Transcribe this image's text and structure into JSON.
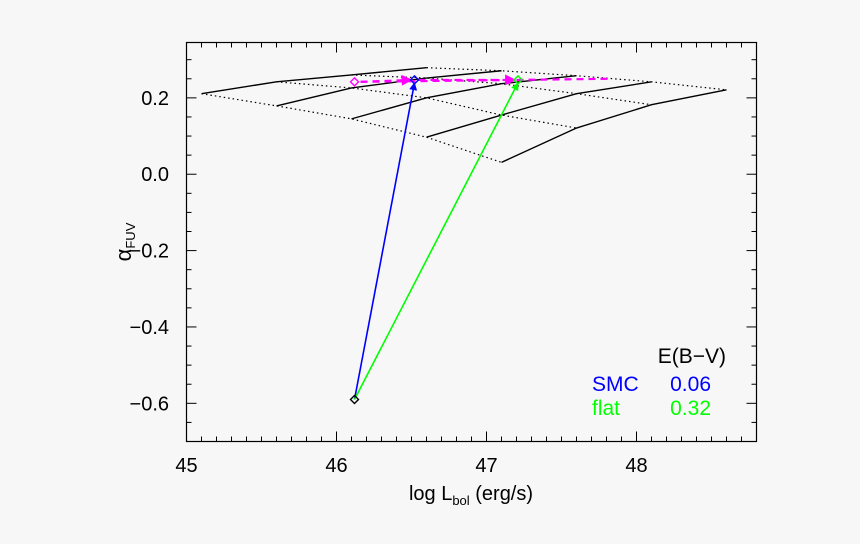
{
  "chart_data": {
    "type": "line",
    "xlabel": "log L",
    "xlabel_sub": "bol",
    "xlabel_unit": " (erg/s)",
    "ylabel": "α",
    "ylabel_sub": "FUV",
    "xlim": [
      45.0,
      48.8
    ],
    "ylim": [
      -0.7,
      0.345
    ],
    "xticks": [
      45,
      46,
      47,
      48
    ],
    "xtick_labels": [
      "45",
      "46",
      "47",
      "48"
    ],
    "yticks": [
      -0.6,
      -0.4,
      -0.2,
      0.0,
      0.2
    ],
    "ytick_labels": [
      "−0.6",
      "−0.4",
      "−0.2",
      "0.0",
      "0.2"
    ],
    "x_minor_step": 0.1,
    "y_minor_step": 0.05,
    "grid": false,
    "model_grid": {
      "x": [
        [
          45.1,
          45.6,
          46.1,
          46.6
        ],
        [
          45.6,
          46.1,
          46.6,
          47.1
        ],
        [
          46.1,
          46.6,
          47.1,
          47.6
        ],
        [
          46.6,
          47.1,
          47.6,
          48.1
        ],
        [
          47.1,
          47.6,
          48.1,
          48.6
        ]
      ],
      "y": [
        [
          0.211,
          0.242,
          0.26,
          0.279
        ],
        [
          0.179,
          0.226,
          0.252,
          0.271
        ],
        [
          0.145,
          0.2,
          0.237,
          0.258
        ],
        [
          0.097,
          0.155,
          0.211,
          0.242
        ],
        [
          0.031,
          0.121,
          0.182,
          0.221
        ]
      ]
    },
    "points": {
      "observed": {
        "x": 46.12,
        "y": -0.59,
        "color": "#000000"
      },
      "magenta_start": {
        "x": 46.12,
        "y": 0.242,
        "color": "#ff00ff"
      },
      "smc_end": {
        "x": 46.52,
        "y": 0.247,
        "color": "#0000ff"
      },
      "flat_end": {
        "x": 47.21,
        "y": 0.247,
        "color": "#00ff00"
      }
    },
    "magenta_dash_end": {
      "x": 47.83,
      "y": 0.25
    },
    "legend": {
      "title": "E(B−V)",
      "entries": [
        {
          "name": "SMC",
          "value": "0.06",
          "color": "#0000ff"
        },
        {
          "name": "flat",
          "value": "0.32",
          "color": "#00ff00"
        }
      ],
      "placement": "bottom-right"
    }
  }
}
